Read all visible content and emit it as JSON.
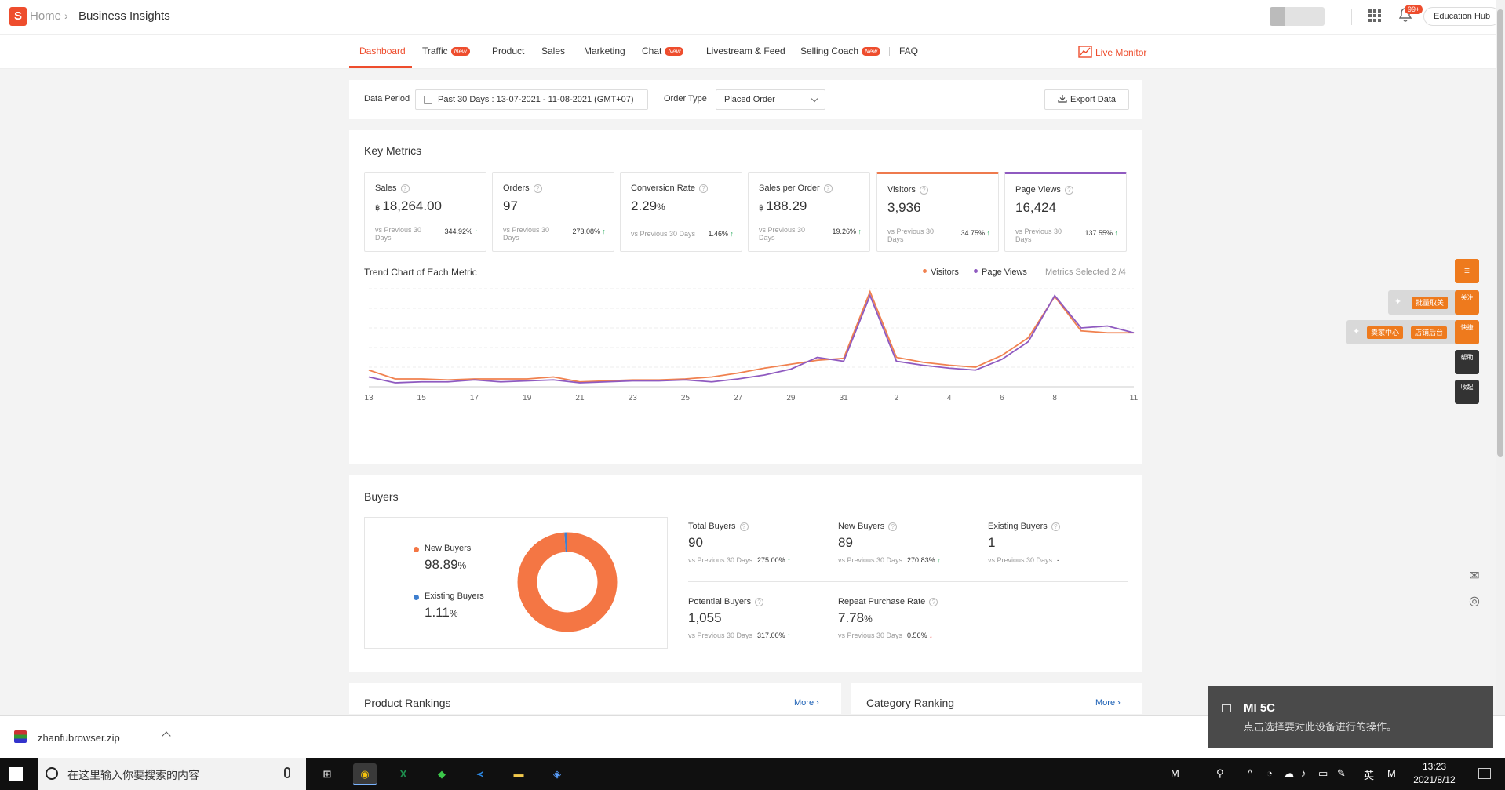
{
  "header": {
    "logo_letter": "S",
    "breadcrumb_home": "Home",
    "breadcrumb_sep": "›",
    "breadcrumb_current": "Business Insights",
    "bell_badge": "99+",
    "education_hub": "Education Hub"
  },
  "tabs": {
    "items": [
      {
        "label": "Dashboard"
      },
      {
        "label": "Traffic",
        "badge": "New"
      },
      {
        "label": "Product"
      },
      {
        "label": "Sales"
      },
      {
        "label": "Marketing"
      },
      {
        "label": "Chat",
        "badge": "New"
      },
      {
        "label": "Livestream & Feed"
      },
      {
        "label": "Selling Coach",
        "badge": "New"
      },
      {
        "label": "FAQ"
      }
    ],
    "live_monitor": "Live Monitor"
  },
  "filters": {
    "data_period_label": "Data Period",
    "data_period_value": "Past 30 Days :  13-07-2021 - 11-08-2021 (GMT+07)",
    "order_type_label": "Order Type",
    "order_type_value": "Placed Order",
    "export_label": "Export Data"
  },
  "key_metrics": {
    "title": "Key Metrics",
    "currency": "฿",
    "info_glyph": "?",
    "vs_label": "vs Previous 30 Days",
    "cards": [
      {
        "name": "Sales",
        "value": "18,264.00",
        "change": "344.92%",
        "direction": "up"
      },
      {
        "name": "Orders",
        "value": "97",
        "change": "273.08%",
        "direction": "up"
      },
      {
        "name": "Conversion Rate",
        "value": "2.29",
        "unit": "%",
        "change": "1.46%",
        "direction": "up"
      },
      {
        "name": "Sales per Order",
        "value": "188.29",
        "change": "19.26%",
        "direction": "up"
      },
      {
        "name": "Visitors",
        "value": "3,936",
        "change": "34.75%",
        "direction": "up"
      },
      {
        "name": "Page Views",
        "value": "16,424",
        "change": "137.55%",
        "direction": "up"
      }
    ]
  },
  "trend": {
    "title": "Trend Chart of Each Metric",
    "metrics_selected": "Metrics Selected 2 /4"
  },
  "chart_data": {
    "type": "line",
    "title": "Trend Chart of Each Metric",
    "x": [
      "13",
      "14",
      "15",
      "16",
      "17",
      "18",
      "19",
      "20",
      "21",
      "22",
      "23",
      "24",
      "25",
      "26",
      "27",
      "28",
      "29",
      "30",
      "31",
      "1",
      "2",
      "3",
      "4",
      "5",
      "6",
      "7",
      "8",
      "9",
      "10",
      "11"
    ],
    "x_tick_labels": [
      "13",
      "15",
      "17",
      "19",
      "21",
      "23",
      "25",
      "27",
      "29",
      "31",
      "2",
      "4",
      "6",
      "8",
      "11"
    ],
    "ylim": [
      0,
      100
    ],
    "grid": true,
    "legend_position": "top-right",
    "series": [
      {
        "name": "Visitors",
        "color": "#f0814f",
        "values": [
          17,
          8,
          8,
          7,
          8,
          8,
          8,
          10,
          5,
          6,
          7,
          7,
          8,
          10,
          14,
          19,
          23,
          27,
          29,
          97,
          30,
          25,
          22,
          20,
          32,
          50,
          92,
          57,
          55,
          55
        ]
      },
      {
        "name": "Page Views",
        "color": "#8f5ac0",
        "values": [
          10,
          4,
          5,
          5,
          7,
          5,
          6,
          7,
          4,
          5,
          6,
          6,
          7,
          5,
          8,
          12,
          18,
          30,
          26,
          93,
          26,
          22,
          19,
          17,
          28,
          46,
          93,
          60,
          62,
          55
        ]
      }
    ]
  },
  "buyers": {
    "title": "Buyers",
    "donut": [
      {
        "name": "New Buyers",
        "value": "98.89",
        "unit": "%",
        "fraction": 0.9889,
        "color": "#f47644"
      },
      {
        "name": "Existing Buyers",
        "value": "1.11",
        "unit": "%",
        "fraction": 0.0111,
        "color": "#3f7fcf"
      }
    ],
    "vs_label": "vs Previous 30 Days",
    "stats": [
      {
        "name": "Total Buyers",
        "value": "90",
        "change": "275.00%",
        "direction": "up"
      },
      {
        "name": "New Buyers",
        "value": "89",
        "change": "270.83%",
        "direction": "up"
      },
      {
        "name": "Existing Buyers",
        "value": "1",
        "change": "-",
        "direction": "none"
      },
      {
        "name": "Potential Buyers",
        "value": "1,055",
        "change": "317.00%",
        "direction": "up"
      },
      {
        "name": "Repeat Purchase Rate",
        "value": "7.78",
        "unit": "%",
        "change": "0.56%",
        "direction": "down"
      }
    ]
  },
  "rankings": {
    "product_title": "Product Rankings",
    "category_title": "Category Ranking",
    "more": "More ›"
  },
  "floating": {
    "pill_1": "批量取关",
    "btn_1": "关注",
    "pill_2a": "卖家中心",
    "pill_2b": "店铺后台",
    "btn_2": "快捷",
    "btn_help": "帮助",
    "btn_collapse": "收起"
  },
  "download": {
    "file": "zhanfubrowser.zip"
  },
  "toast": {
    "title": "MI 5C",
    "message": "点击选择要对此设备进行的操作。"
  },
  "taskbar": {
    "search_placeholder": "在这里输入你要搜索的内容",
    "apps": [
      "⊞",
      "◉",
      "X",
      "◆",
      "≺",
      "▬",
      "◈"
    ],
    "tray": {
      "m1": "M",
      "lang": "英",
      "m2": "M"
    },
    "time": "13:23",
    "date": "2021/8/12"
  },
  "colors": {
    "brand": "#ee4d2d",
    "visitors": "#f0814f",
    "page_views": "#8f5ac0",
    "up": "#26aa5a",
    "down": "#ee2d2d"
  }
}
